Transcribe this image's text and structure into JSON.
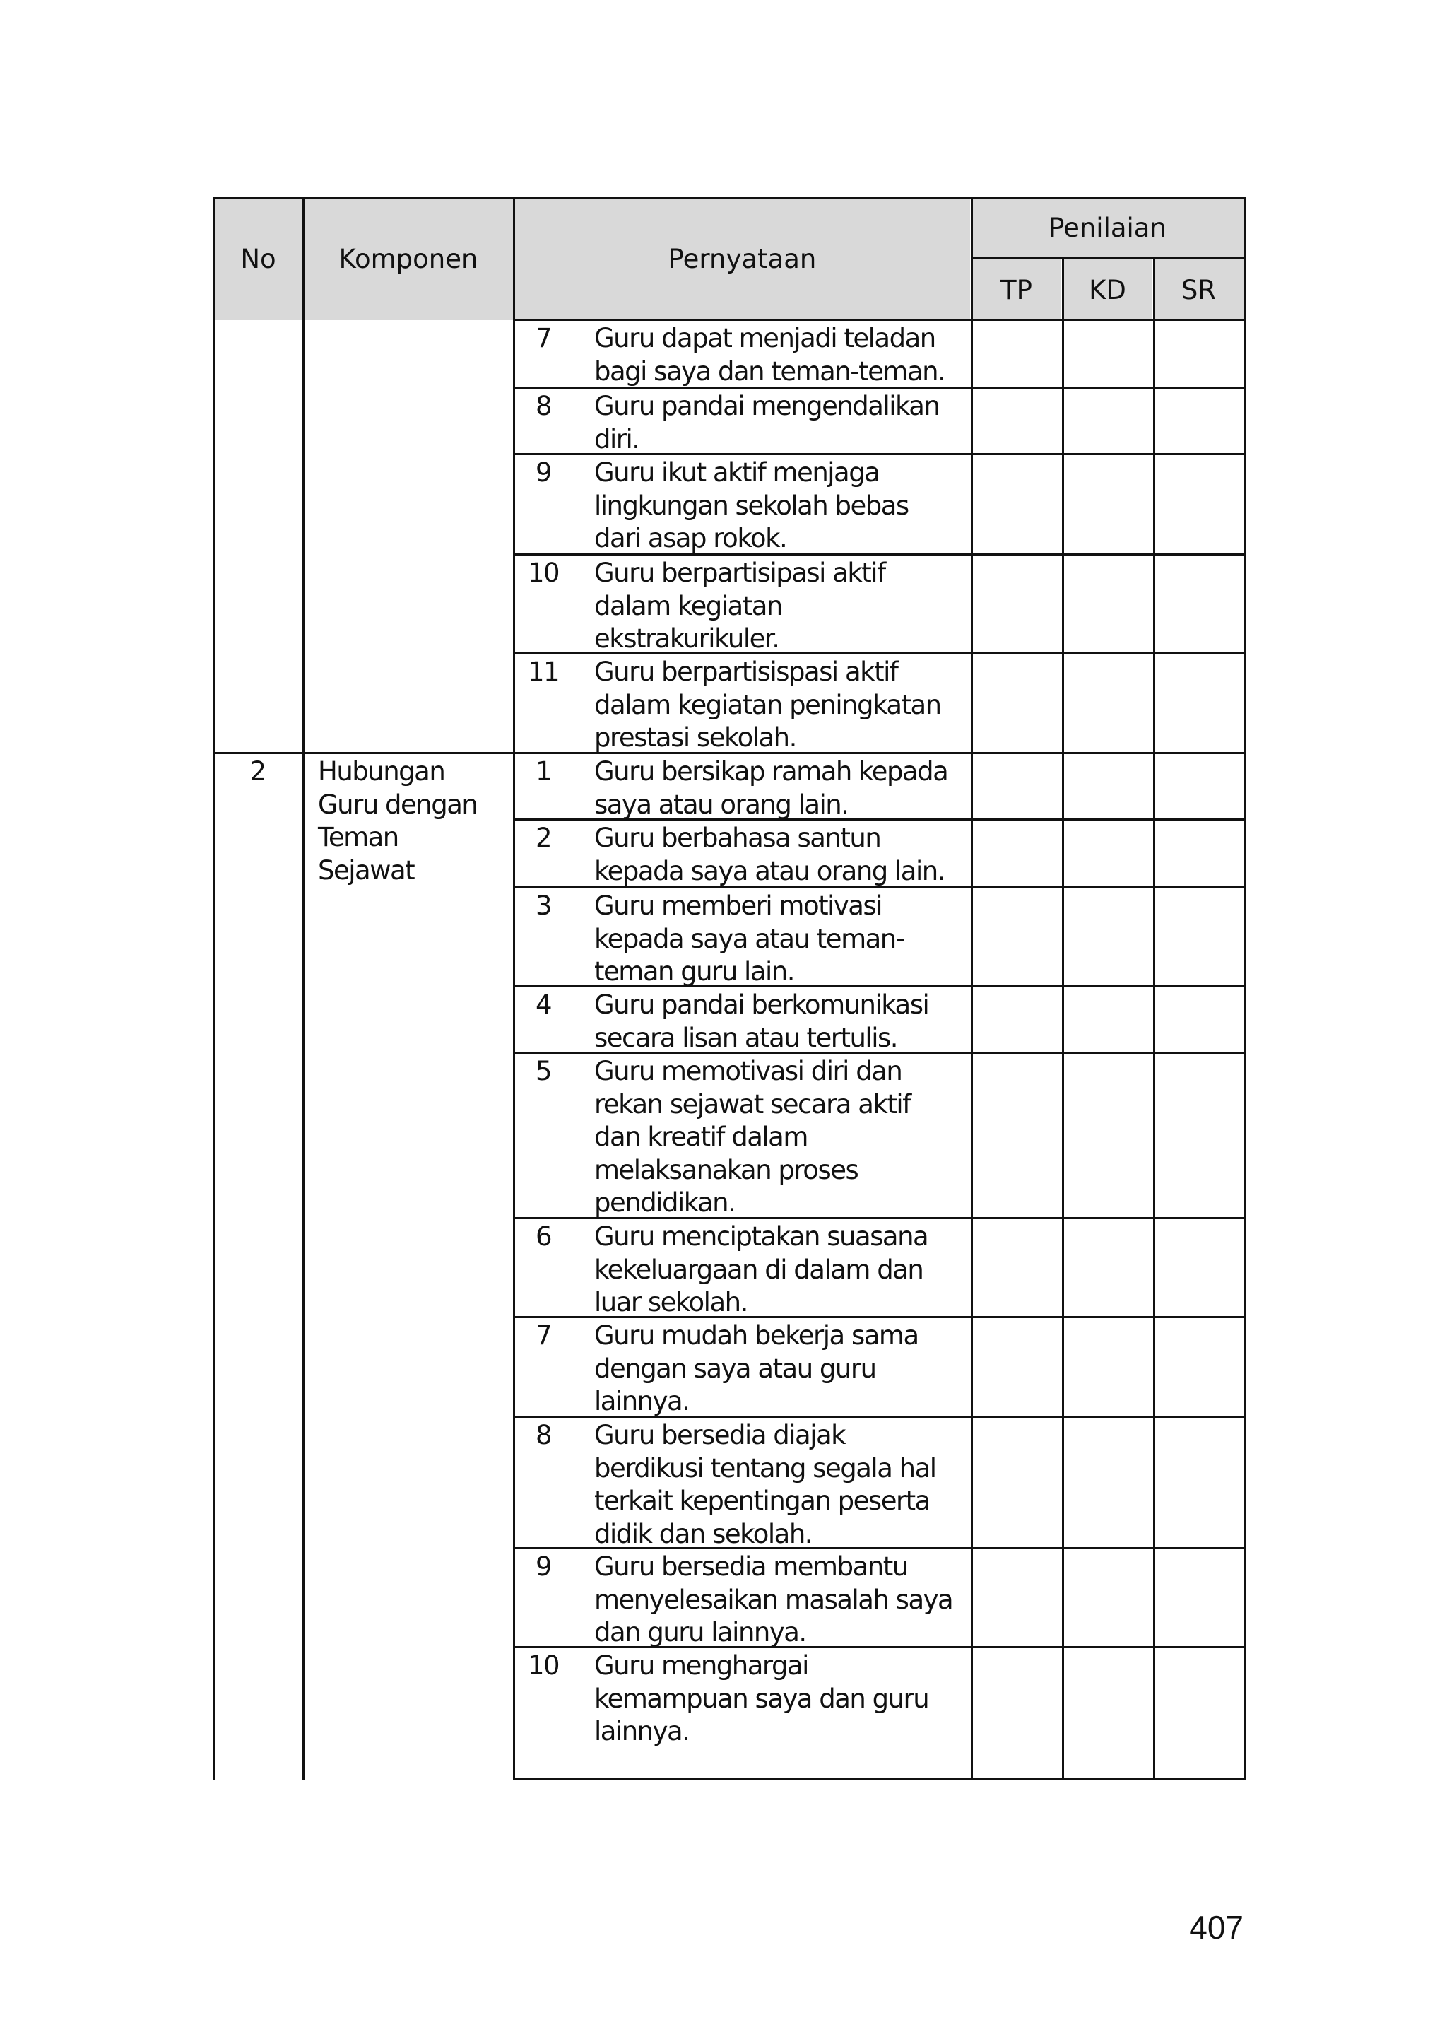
{
  "table": {
    "headers": {
      "no": "No",
      "komponen": "Komponen",
      "pernyataan": "Pernyataan",
      "penilaian": "Penilaian",
      "tp": "TP",
      "kd": "KD",
      "sr": "SR"
    },
    "groups": [
      {
        "no": "",
        "komponen": "",
        "items": [
          {
            "n": "7",
            "text": "Guru dapat menjadi teladan\nbagi saya dan teman-teman."
          },
          {
            "n": "8",
            "text": "Guru pandai mengendalikan\ndiri."
          },
          {
            "n": "9",
            "text": "Guru ikut aktif menjaga\nlingkungan sekolah bebas\ndari asap rokok."
          },
          {
            "n": "10",
            "text": "Guru berpartisipasi aktif\ndalam kegiatan\nekstrakurikuler."
          },
          {
            "n": "11",
            "text": "Guru berpartisispasi aktif\ndalam kegiatan peningkatan\nprestasi sekolah."
          }
        ]
      },
      {
        "no": "2",
        "komponen": "Hubungan\nGuru dengan\nTeman\nSejawat",
        "items": [
          {
            "n": "1",
            "text": "Guru bersikap ramah kepada\nsaya atau orang lain."
          },
          {
            "n": "2",
            "text": "Guru berbahasa santun\nkepada saya atau orang lain."
          },
          {
            "n": "3",
            "text": "Guru memberi motivasi\nkepada saya atau teman-\nteman guru lain."
          },
          {
            "n": "4",
            "text": "Guru pandai berkomunikasi\nsecara lisan atau tertulis."
          },
          {
            "n": "5",
            "text": "Guru memotivasi diri dan\nrekan sejawat secara aktif\ndan kreatif dalam\nmelaksanakan proses\npendidikan."
          },
          {
            "n": "6",
            "text": "Guru menciptakan suasana\nkekeluargaan di dalam dan\nluar sekolah."
          },
          {
            "n": "7",
            "text": "Guru mudah bekerja sama\ndengan saya atau guru\nlainnya."
          },
          {
            "n": "8",
            "text": "Guru bersedia diajak\nberdikusi tentang segala hal\nterkait kepentingan peserta\ndidik dan sekolah."
          },
          {
            "n": "9",
            "text": "Guru bersedia membantu\nmenyelesaikan masalah saya\ndan guru lainnya."
          },
          {
            "n": "10",
            "text": "Guru menghargai\nkemampuan saya dan guru\nlainnya."
          }
        ]
      }
    ]
  },
  "page_number": "407"
}
